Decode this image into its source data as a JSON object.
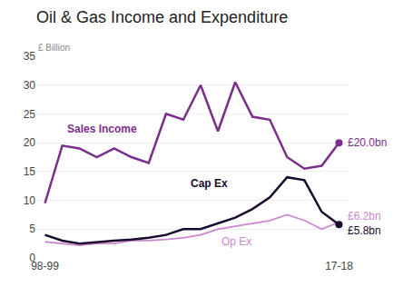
{
  "chart_data": {
    "type": "line",
    "title": "Oil & Gas Income and Expenditure",
    "ylabel": "£ Billion",
    "categories": [
      "98-99",
      null,
      null,
      null,
      null,
      null,
      null,
      null,
      null,
      null,
      null,
      null,
      null,
      null,
      null,
      null,
      null,
      "17-18"
    ],
    "series": [
      {
        "name": "Op Ex",
        "color": "#cc88cc",
        "values": [
          2.8,
          2.5,
          2.2,
          2.5,
          2.5,
          3.0,
          3.0,
          3.2,
          3.5,
          4.0,
          5.0,
          5.5,
          6.0,
          6.5,
          7.5,
          6.5,
          5.0,
          6.2
        ],
        "value_labels": [
          null,
          null,
          null,
          null,
          null,
          null,
          null,
          null,
          null,
          null,
          null,
          null,
          null,
          null,
          null,
          null,
          null,
          "£6.2bn"
        ]
      },
      {
        "name": "Cap Ex",
        "color": "#1a0a2e",
        "marker": "circle",
        "values": [
          4.0,
          3.0,
          2.5,
          2.8,
          3.0,
          3.2,
          3.5,
          4.0,
          5.0,
          5.0,
          6.0,
          7.0,
          8.5,
          10.5,
          14.0,
          13.5,
          8.0,
          5.8
        ],
        "value_labels": [
          null,
          null,
          null,
          null,
          null,
          null,
          null,
          null,
          null,
          null,
          null,
          null,
          null,
          null,
          null,
          null,
          null,
          "£5.8bn"
        ]
      },
      {
        "name": "Sales Income",
        "color": "#7b2d8b",
        "marker": "circle",
        "values": [
          9.5,
          19.5,
          19.0,
          17.5,
          19.0,
          17.5,
          16.5,
          25.0,
          24.0,
          30.0,
          22.0,
          30.5,
          24.5,
          24.0,
          17.5,
          15.5,
          16.0,
          20.0
        ],
        "value_labels": [
          null,
          null,
          null,
          null,
          null,
          null,
          null,
          null,
          null,
          null,
          null,
          null,
          null,
          null,
          null,
          null,
          null,
          "£20.0bn"
        ]
      }
    ],
    "ylim": [
      0,
      35
    ],
    "yticks": [
      0,
      5,
      10,
      15,
      20,
      25,
      30,
      35
    ],
    "grid": true
  }
}
